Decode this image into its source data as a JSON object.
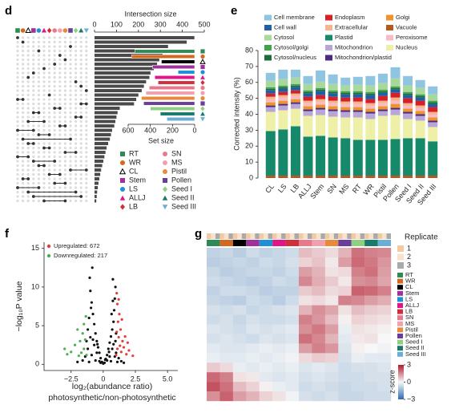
{
  "chart_data": [
    {
      "type": "upset",
      "panel": "d",
      "title": "Intersection size",
      "xlim": [
        0,
        500
      ],
      "xticks": [
        0,
        100,
        200,
        300,
        400,
        500
      ],
      "values": [
        455,
        420,
        335,
        320,
        310,
        295,
        285,
        270,
        255,
        250,
        235,
        225,
        215,
        200,
        190,
        180,
        115,
        105,
        100,
        95,
        90,
        80,
        75,
        70,
        62,
        55,
        50,
        45,
        40,
        35,
        30,
        26,
        22,
        18,
        15,
        12,
        10,
        8
      ],
      "members": [
        [
          0
        ],
        [
          1
        ],
        [
          10
        ],
        [
          4
        ],
        [
          8
        ],
        [
          9
        ],
        [
          7
        ],
        [
          5
        ],
        [
          3
        ],
        [
          2
        ],
        [
          11
        ],
        [
          12
        ],
        [
          13
        ],
        [
          6
        ],
        [
          0,
          1
        ],
        [
          12,
          13
        ],
        [
          7,
          8
        ],
        [
          3,
          4
        ],
        [
          11,
          12
        ],
        [
          2,
          5
        ],
        [
          8,
          9
        ],
        [
          0,
          3
        ],
        [
          4,
          6
        ],
        [
          1,
          10
        ],
        [
          2,
          3
        ],
        [
          5,
          6
        ],
        [
          9,
          11
        ],
        [
          0,
          2
        ],
        [
          3,
          7
        ],
        [
          4,
          5
        ],
        [
          10,
          13
        ],
        [
          6,
          8
        ],
        [
          1,
          2
        ],
        [
          7,
          9
        ],
        [
          0,
          4
        ],
        [
          2,
          11
        ],
        [
          3,
          12
        ],
        [
          5,
          9
        ]
      ],
      "sets": [
        {
          "name": "RT",
          "color": "#2e8b57",
          "shape": "square",
          "size": 540
        },
        {
          "name": "WR",
          "color": "#d2691e",
          "shape": "circle",
          "size": 570
        },
        {
          "name": "CL",
          "color": "#000000",
          "shape": "triangle-open",
          "size": 300
        },
        {
          "name": "Stem",
          "color": "#a0309a",
          "shape": "square",
          "size": 380
        },
        {
          "name": "LS",
          "color": "#1e90d6",
          "shape": "circle",
          "size": 150
        },
        {
          "name": "ALLJ",
          "color": "#e0158a",
          "shape": "triangle",
          "size": 360
        },
        {
          "name": "LB",
          "color": "#d0303c",
          "shape": "diamond",
          "size": 330
        },
        {
          "name": "SN",
          "color": "#e8788a",
          "shape": "circle",
          "size": 410
        },
        {
          "name": "MS",
          "color": "#f2a0b0",
          "shape": "circle",
          "size": 440
        },
        {
          "name": "Pistil",
          "color": "#e88a3a",
          "shape": "circle",
          "size": 480
        },
        {
          "name": "Pollen",
          "color": "#6a3d9a",
          "shape": "square",
          "size": 460
        },
        {
          "name": "Seed I",
          "color": "#8fcf7f",
          "shape": "diamond",
          "size": 400
        },
        {
          "name": "Seed II",
          "color": "#1a7a6a",
          "shape": "triangle",
          "size": 310
        },
        {
          "name": "Seed III",
          "color": "#6aaed6",
          "shape": "triangle-down",
          "size": 250
        }
      ],
      "set_size_label": "Set size",
      "set_size_lim": [
        0,
        600
      ],
      "set_size_ticks": [
        600,
        400,
        200,
        0
      ]
    },
    {
      "type": "stacked_bar",
      "panel": "e",
      "y_label": "Corrected intensity (%)",
      "categories": [
        "CL",
        "LS",
        "LB",
        "ALLJ",
        "Stem",
        "SN",
        "MS",
        "RT",
        "WR",
        "Pistil",
        "Pollen",
        "Seed I",
        "Seed II",
        "Seed III"
      ],
      "ylim": [
        0,
        80
      ],
      "yticks": [
        0,
        10,
        20,
        30,
        40,
        50,
        60,
        70,
        80
      ],
      "stack_order": [
        11,
        7,
        13,
        8,
        9,
        10,
        12,
        6,
        5,
        1,
        4,
        3,
        2,
        0
      ],
      "series": [
        {
          "name": "Cell membrane",
          "color": "#8fc5e0",
          "values": [
            5,
            6,
            5,
            5,
            7,
            6,
            5,
            5,
            6,
            6,
            7,
            6,
            5,
            5
          ]
        },
        {
          "name": "Cell wall",
          "color": "#1f5fa8",
          "values": [
            2,
            2,
            2,
            2,
            2.5,
            2,
            2,
            2,
            2.5,
            2,
            2,
            2,
            2,
            2
          ]
        },
        {
          "name": "Cytosol",
          "color": "#a8d89a",
          "values": [
            4,
            4,
            4,
            4,
            4,
            4,
            3.5,
            4,
            4,
            4,
            5,
            4,
            4,
            4
          ]
        },
        {
          "name": "Cytosol/golgi",
          "color": "#3fa34d",
          "values": [
            1,
            1,
            1,
            1,
            1,
            1,
            1,
            1,
            1,
            1,
            1,
            1,
            1,
            1
          ]
        },
        {
          "name": "Cytosol/nucleus",
          "color": "#1e6b3a",
          "values": [
            1,
            1,
            1,
            1,
            1,
            1,
            1,
            1,
            1,
            1,
            1,
            1,
            1,
            1
          ]
        },
        {
          "name": "Endoplasm",
          "color": "#d62027",
          "values": [
            2,
            2,
            2,
            2.5,
            2.5,
            2.5,
            2.5,
            2.5,
            2.5,
            3,
            3,
            3,
            3,
            3
          ]
        },
        {
          "name": "Extracellular",
          "color": "#f5b48a",
          "values": [
            1.5,
            1.5,
            1.5,
            1.5,
            1.5,
            1.5,
            1.5,
            1.5,
            1.5,
            1.5,
            2,
            1.5,
            1.5,
            1.5
          ]
        },
        {
          "name": "Plastid",
          "color": "#15896a",
          "values": [
            28,
            29,
            31,
            24.5,
            25,
            24,
            23.5,
            22.5,
            22.5,
            22.5,
            23,
            23.5,
            23.5,
            21.5
          ]
        },
        {
          "name": "Mitochondrion",
          "color": "#b8a6d6",
          "values": [
            3,
            3,
            3,
            3,
            3.5,
            3.5,
            3.5,
            3.5,
            3.5,
            3,
            3.5,
            3.5,
            3,
            3
          ]
        },
        {
          "name": "Mitochondrion/plastid",
          "color": "#4b2a80",
          "values": [
            1,
            1,
            1,
            1,
            1,
            1,
            1,
            1,
            1,
            1,
            1,
            1,
            1,
            1
          ]
        },
        {
          "name": "Golgi",
          "color": "#f0932b",
          "values": [
            2,
            2,
            2,
            2,
            2,
            2,
            2,
            2,
            2,
            2,
            2.5,
            2,
            2,
            2
          ]
        },
        {
          "name": "Vacuole",
          "color": "#b35b1e",
          "values": [
            1.5,
            1.5,
            1.5,
            1.5,
            1.5,
            1.5,
            1.5,
            1.5,
            1.5,
            1.5,
            1.5,
            1.5,
            1.5,
            1.5
          ]
        },
        {
          "name": "Peroxisome",
          "color": "#f7bcc6",
          "values": [
            2,
            2,
            2,
            2,
            2,
            2,
            2,
            2,
            2,
            2,
            2,
            2,
            2,
            2
          ]
        },
        {
          "name": "Nucleus",
          "color": "#eef0a8",
          "values": [
            12,
            12,
            11,
            13,
            13,
            13,
            13,
            14,
            13,
            15,
            15,
            12,
            11,
            9
          ]
        }
      ]
    },
    {
      "type": "scatter",
      "panel": "f",
      "x_label": [
        "log₂(abundance ratio)",
        "photosynthetic/non-photosynthetic"
      ],
      "y_label": "−log₁₀P value",
      "xlim": [
        -4.6,
        5.8
      ],
      "xticks": [
        {
          "value": -2.5,
          "label": "−2.5"
        },
        0,
        2.5,
        {
          "value": 5,
          "label": "5.0"
        }
      ],
      "ylim": [
        -0.8,
        15.8
      ],
      "yticks": [
        0,
        5,
        10,
        15
      ],
      "series": [
        {
          "color": "#111111",
          "x": [
            -0.1,
            0.1,
            0.0,
            -0.2,
            0.2,
            -0.3,
            0.3,
            -0.4,
            0.4,
            -0.5,
            0.5,
            -0.6,
            0.6,
            -0.7,
            0.7,
            -0.8,
            0.8,
            -0.9,
            0.85,
            -1.0,
            0.9,
            -1.05,
            0.95,
            -0.85,
            0.75,
            -1.2,
            1.0,
            -1.4,
            1.2,
            -0.6,
            0.6,
            -0.9,
            0.9,
            -1.1,
            1.1,
            -0.5,
            0.5,
            -0.7,
            0.7,
            -1.0,
            0.95,
            -1.2,
            1.0,
            -0.3,
            0.3,
            -1.6,
            1.4,
            -0.8,
            0.8,
            -1.1,
            0.65,
            -0.95,
            0.75,
            -0.2,
            0.15,
            -2.0,
            1.6,
            -0.45,
            0.45,
            -1.3
          ],
          "y": [
            0.3,
            0.2,
            0.1,
            0.8,
            0.7,
            1.5,
            1.2,
            2.2,
            2.0,
            3.0,
            2.8,
            4.0,
            3.6,
            5.2,
            4.5,
            6.5,
            5.5,
            8.0,
            7.0,
            9.5,
            8.5,
            11.2,
            10.0,
            12.5,
            11.0,
            2.0,
            1.5,
            1.0,
            0.8,
            0.5,
            0.4,
            1.2,
            1.0,
            0.3,
            0.3,
            1.5,
            1.0,
            2.5,
            2.0,
            3.5,
            3.0,
            4.5,
            4.0,
            0.4,
            0.5,
            0.5,
            0.4,
            3.2,
            2.6,
            6.0,
            6.5,
            7.3,
            8.2,
            0.2,
            0.6,
            0.3,
            0.2,
            2.6,
            1.6,
            3.0
          ]
        },
        {
          "name": "Upregulated: 672",
          "color": "#e0403a",
          "x": [
            1.0,
            1.1,
            1.2,
            1.3,
            1.05,
            1.15,
            1.4,
            1.5,
            1.25,
            1.1,
            1.6,
            1.8,
            1.35,
            1.05,
            2.0,
            1.45,
            1.7,
            1.2,
            2.3,
            1.9
          ],
          "y": [
            1.2,
            2.0,
            3.5,
            2.4,
            4.2,
            5.5,
            1.6,
            3.0,
            6.5,
            7.8,
            2.2,
            1.3,
            4.5,
            9.2,
            1.8,
            5.8,
            3.6,
            8.4,
            1.1,
            2.8
          ]
        },
        {
          "name": "Downregulated: 217",
          "color": "#4caf50",
          "x": [
            -1.3,
            -1.5,
            -1.7,
            -1.4,
            -1.9,
            -1.6,
            -2.2,
            -1.5,
            -2.5,
            -1.8,
            -2.0,
            -2.8,
            -1.35,
            -3.0
          ],
          "y": [
            1.2,
            2.0,
            1.5,
            3.2,
            1.1,
            4.0,
            2.5,
            5.2,
            1.6,
            3.0,
            4.5,
            1.3,
            6.2,
            2.0
          ]
        }
      ]
    },
    {
      "type": "heatmap",
      "panel": "g",
      "columns": [
        "RT",
        "WR",
        "CL",
        "Stem",
        "LS",
        "ALLJ",
        "LB",
        "SN",
        "MS",
        "Pistil",
        "Pollen",
        "Seed I",
        "Seed II",
        "Seed III"
      ],
      "column_colors": [
        "#2e8b57",
        "#d2691e",
        "#000000",
        "#a0309a",
        "#1e90d6",
        "#e0158a",
        "#d0303c",
        "#e8788a",
        "#f2a0b0",
        "#e88a3a",
        "#6a3d9a",
        "#8fcf7f",
        "#1a7a6a",
        "#6aaed6"
      ],
      "replicate_title": "Replicate",
      "replicates": [
        1,
        2,
        3
      ],
      "replicate_colors": [
        "#f2c9a2",
        "#f8e2cc",
        "#a9a9a9"
      ],
      "z_label": "z-score",
      "zlim": [
        -3,
        3
      ],
      "zticks": [
        3,
        0,
        {
          "value": -3,
          "label": "−3"
        }
      ],
      "colors": [
        "#2b6cb0",
        "#f7f7f7",
        "#b2182b"
      ],
      "z": [
        [
          -0.8,
          -0.7,
          -0.9,
          -0.6,
          -0.8,
          -0.7,
          -0.6,
          0.8,
          0.6,
          0.4,
          0.9,
          1.8,
          1.6,
          1.5
        ],
        [
          -0.9,
          -0.8,
          -0.7,
          -0.8,
          -0.6,
          -0.7,
          -0.5,
          0.5,
          0.7,
          0.2,
          1.2,
          1.9,
          1.7,
          1.3
        ],
        [
          -0.7,
          -0.9,
          -0.8,
          -0.7,
          -0.7,
          -0.8,
          -0.6,
          1.2,
          0.9,
          0.3,
          0.4,
          1.6,
          1.8,
          1.2
        ],
        [
          -0.6,
          -0.7,
          -0.8,
          -0.9,
          -0.8,
          -0.6,
          -0.7,
          1.5,
          1.0,
          0.6,
          0.2,
          1.4,
          1.5,
          1.1
        ],
        [
          -0.8,
          -0.6,
          -0.6,
          -0.7,
          -0.9,
          -0.8,
          -0.8,
          0.6,
          0.8,
          0.4,
          0.5,
          2.0,
          1.9,
          1.6
        ],
        [
          -0.7,
          -0.8,
          -0.9,
          -0.6,
          -0.7,
          -0.9,
          -0.6,
          0.3,
          0.4,
          0.2,
          1.6,
          1.5,
          1.2,
          1.0
        ],
        [
          -0.5,
          -0.6,
          -0.5,
          -0.7,
          -0.6,
          -0.5,
          -0.4,
          0.9,
          1.4,
          1.1,
          0.3,
          0.8,
          0.6,
          0.5
        ],
        [
          -0.6,
          -0.5,
          -0.7,
          -0.5,
          -0.6,
          -0.6,
          -0.5,
          1.6,
          1.3,
          0.8,
          0.1,
          0.5,
          0.4,
          0.3
        ],
        [
          -0.4,
          -0.5,
          -0.6,
          -0.4,
          -0.5,
          -0.4,
          -0.3,
          1.4,
          1.7,
          1.2,
          -0.2,
          0.3,
          0.2,
          0.1
        ],
        [
          -0.5,
          -0.4,
          -0.5,
          -0.6,
          -0.4,
          -0.5,
          -0.4,
          1.8,
          1.5,
          0.9,
          -0.3,
          0.2,
          0.3,
          0.0
        ],
        [
          -0.3,
          -0.4,
          -0.4,
          -0.3,
          -0.2,
          -0.3,
          -0.2,
          1.2,
          1.6,
          1.3,
          -0.4,
          0.1,
          0.0,
          -0.1
        ],
        [
          -0.2,
          -0.3,
          -0.3,
          -0.2,
          -0.3,
          -0.2,
          -0.1,
          0.4,
          0.6,
          0.5,
          -0.5,
          -0.2,
          -0.3,
          -0.3
        ],
        [
          0.6,
          0.4,
          -0.2,
          -0.3,
          -0.2,
          -0.3,
          -0.2,
          -0.4,
          -0.3,
          -0.4,
          -0.6,
          -0.5,
          -0.5,
          -0.4
        ],
        [
          1.9,
          1.6,
          0.3,
          0.2,
          -0.3,
          -0.4,
          -0.3,
          -0.5,
          -0.4,
          -0.5,
          -0.6,
          -0.6,
          -0.5,
          -0.5
        ],
        [
          2.2,
          1.8,
          0.8,
          0.5,
          0.1,
          -0.2,
          -0.3,
          -0.6,
          -0.5,
          -0.6,
          -0.7,
          -0.6,
          -0.6,
          -0.5
        ],
        [
          1.4,
          2.0,
          1.2,
          0.9,
          0.5,
          0.3,
          -0.1,
          -0.5,
          -0.6,
          -0.5,
          -0.7,
          -0.7,
          -0.6,
          -0.6
        ]
      ]
    }
  ]
}
